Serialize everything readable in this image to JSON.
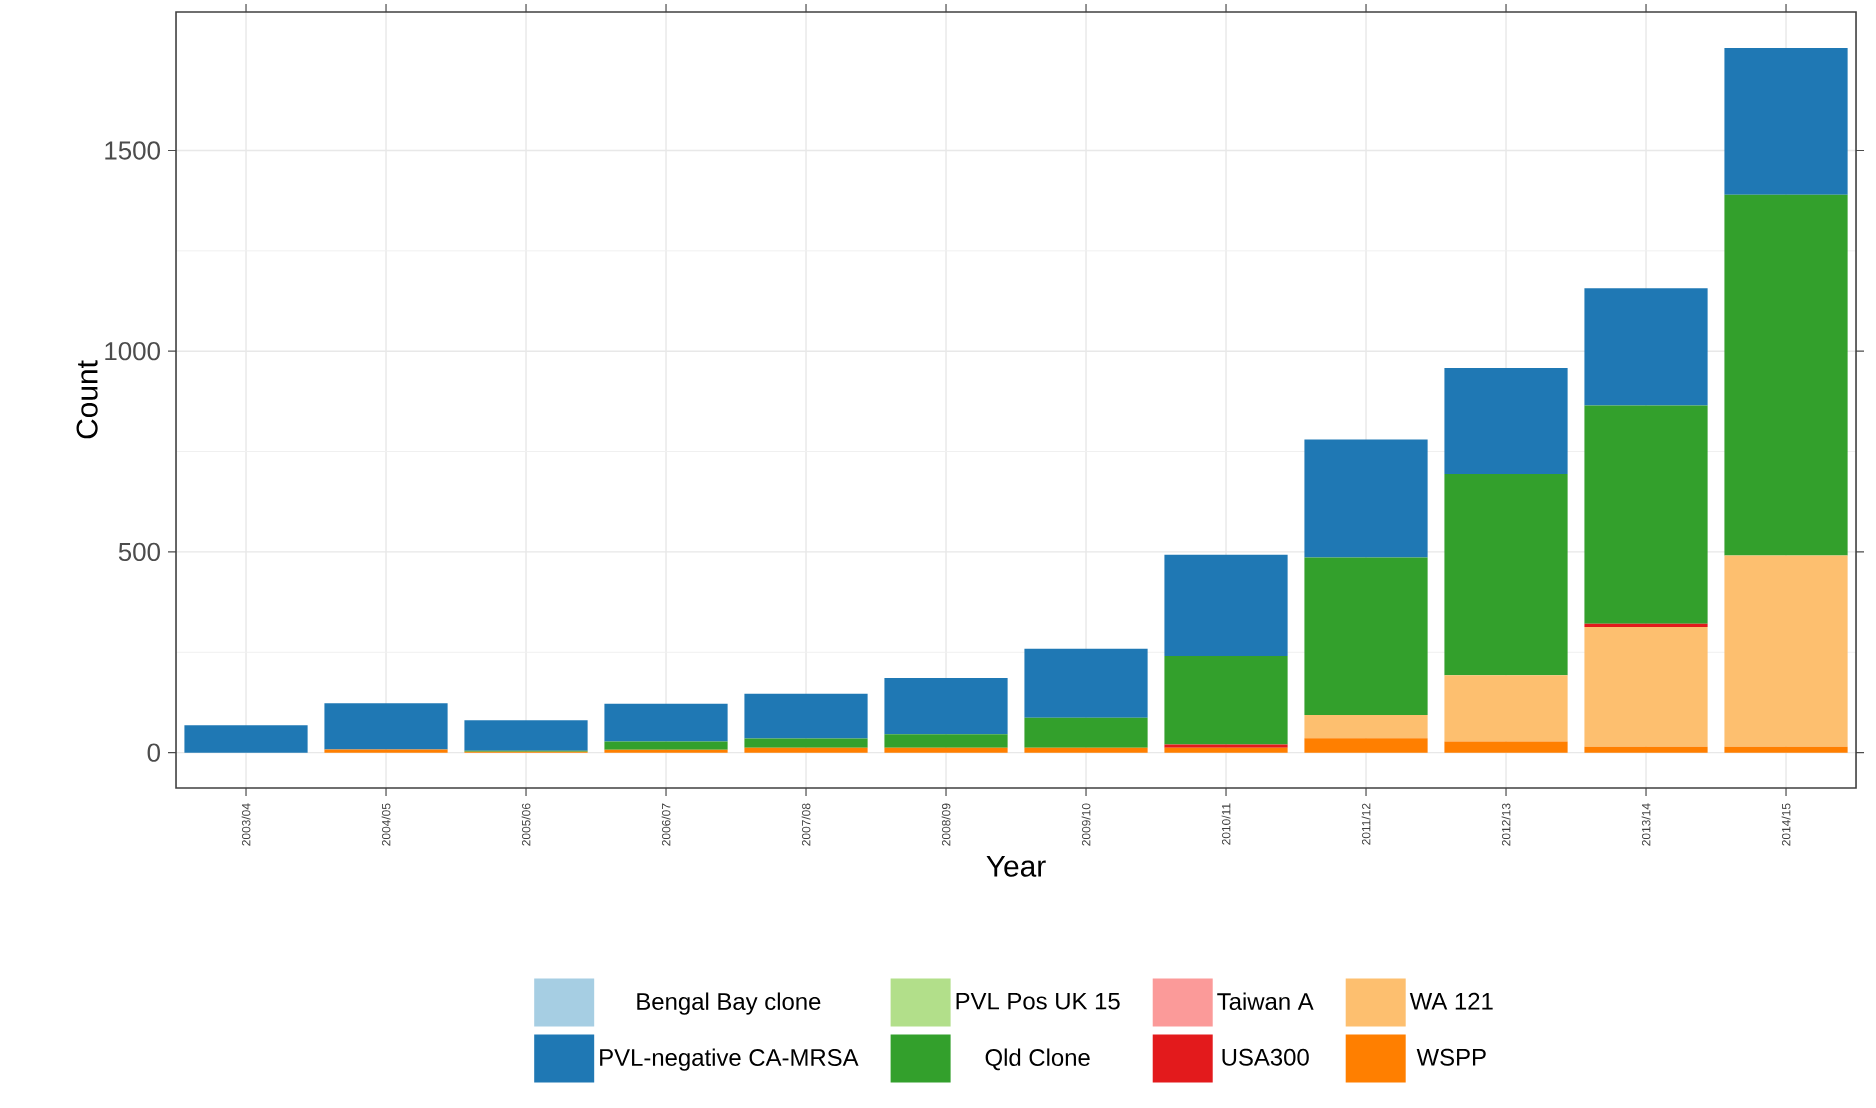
{
  "chart_data": {
    "type": "bar",
    "stacked": true,
    "xlabel": "Year",
    "ylabel": "Count",
    "categories": [
      "2003/04",
      "2004/05",
      "2005/06",
      "2006/07",
      "2007/08",
      "2008/09",
      "2009/10",
      "2010/11",
      "2011/12",
      "2012/13",
      "2013/14",
      "2014/15"
    ],
    "ylim": [
      -88,
      1845
    ],
    "yticks": [
      0,
      500,
      1000,
      1500
    ],
    "grid": true,
    "legend": "bottom",
    "series": [
      {
        "name": "WSPP",
        "color": "#ff7f00",
        "values": [
          0,
          8,
          2,
          7,
          12,
          12,
          12,
          12,
          36,
          28,
          15,
          15
        ]
      },
      {
        "name": "WA 121",
        "color": "#fdbf6f",
        "values": [
          0,
          0,
          0,
          0,
          0,
          0,
          0,
          0,
          58,
          165,
          298,
          476
        ]
      },
      {
        "name": "USA300",
        "color": "#e31a1c",
        "values": [
          0,
          0,
          0,
          0,
          0,
          0,
          0,
          8,
          0,
          0,
          8,
          0
        ]
      },
      {
        "name": "Taiwan A",
        "color": "#fb9a99",
        "values": [
          0,
          0,
          0,
          0,
          0,
          0,
          0,
          0,
          0,
          0,
          0,
          0
        ]
      },
      {
        "name": "Qld Clone",
        "color": "#33a02c",
        "values": [
          0,
          0,
          3,
          21,
          23,
          34,
          75,
          221,
          392,
          501,
          544,
          899
        ]
      },
      {
        "name": "PVL Pos UK 15",
        "color": "#b2df8a",
        "values": [
          0,
          0,
          0,
          0,
          0,
          0,
          0,
          0,
          0,
          0,
          0,
          0
        ]
      },
      {
        "name": "PVL-negative CA-MRSA",
        "color": "#1f78b4",
        "values": [
          68,
          115,
          76,
          94,
          112,
          140,
          172,
          252,
          294,
          264,
          292,
          365
        ]
      },
      {
        "name": "Bengal Bay clone",
        "color": "#a6cee3",
        "values": [
          0,
          0,
          0,
          0,
          0,
          0,
          0,
          0,
          0,
          0,
          0,
          0
        ]
      }
    ]
  }
}
